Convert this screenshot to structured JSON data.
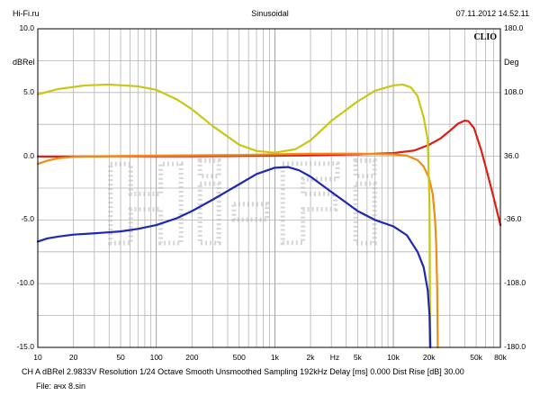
{
  "header": {
    "left": "Hi-Fi.ru",
    "center": "Sinusoidal",
    "right": "07.11.2012 14.52.11"
  },
  "badge": "CLIO",
  "watermark": "Hi-Fi",
  "footer": {
    "settings": "CH A   dBRel 2.9833V  Resolution 1/24 Octave   Smooth Unsmoothed   Sampling 192kHz   Delay [ms] 0.000     Dist Rise [dB] 30.00",
    "file": "File: ачх 8.sin"
  },
  "chart_data": {
    "type": "line",
    "x_scale": "log",
    "xlim": [
      10,
      80000
    ],
    "ylim": [
      -15,
      10
    ],
    "y2lim": [
      -180,
      180
    ],
    "ylabel": "dBRel",
    "y2label": "Deg",
    "xunit": "Hz",
    "grid": true,
    "x_ticks": [
      {
        "v": 10,
        "label": "10"
      },
      {
        "v": 20,
        "label": "20"
      },
      {
        "v": 50,
        "label": "50"
      },
      {
        "v": 100,
        "label": "100"
      },
      {
        "v": 200,
        "label": "200"
      },
      {
        "v": 500,
        "label": "500"
      },
      {
        "v": 1000,
        "label": "1k"
      },
      {
        "v": 2000,
        "label": "2k"
      },
      {
        "v": 5000,
        "label": "5k"
      },
      {
        "v": 10000,
        "label": "10k"
      },
      {
        "v": 20000,
        "label": "20k"
      },
      {
        "v": 50000,
        "label": "50k"
      },
      {
        "v": 80000,
        "label": "80k"
      }
    ],
    "x_unit_tick": {
      "v": 3200,
      "label": "Hz"
    },
    "y_ticks": [
      {
        "v": 10,
        "label": "10.0"
      },
      {
        "v": 5,
        "label": "5.0"
      },
      {
        "v": 0,
        "label": "0.0"
      },
      {
        "v": -5,
        "label": "-5.0"
      },
      {
        "v": -10,
        "label": "-10.0"
      },
      {
        "v": -15,
        "label": "-15.0"
      }
    ],
    "y2_ticks": [
      {
        "v": 180,
        "label": "180.0"
      },
      {
        "v": 108,
        "label": "108.0"
      },
      {
        "v": 36,
        "label": "36.0"
      },
      {
        "v": -36,
        "label": "-36.0"
      },
      {
        "v": -108,
        "label": "-108.0"
      },
      {
        "v": -180,
        "label": "-180.0"
      }
    ],
    "series": [
      {
        "color": "#dc1e14",
        "axis": "left",
        "points": [
          [
            10,
            -0.02
          ],
          [
            20,
            -0.02
          ],
          [
            50,
            0.0
          ],
          [
            100,
            0.0
          ],
          [
            200,
            0.0
          ],
          [
            500,
            0.02
          ],
          [
            1000,
            0.04
          ],
          [
            2000,
            0.08
          ],
          [
            5000,
            0.15
          ],
          [
            10000,
            0.25
          ],
          [
            15000,
            0.45
          ],
          [
            20000,
            0.9
          ],
          [
            25000,
            1.4
          ],
          [
            30000,
            2.0
          ],
          [
            35000,
            2.55
          ],
          [
            40000,
            2.8
          ],
          [
            43000,
            2.75
          ],
          [
            48000,
            2.2
          ],
          [
            55000,
            0.5
          ],
          [
            60000,
            -0.8
          ],
          [
            70000,
            -3.2
          ],
          [
            80000,
            -5.4
          ]
        ]
      },
      {
        "color": "#f08c14",
        "axis": "left",
        "points": [
          [
            10,
            -0.6
          ],
          [
            12,
            -0.35
          ],
          [
            15,
            -0.15
          ],
          [
            20,
            -0.05
          ],
          [
            30,
            0.0
          ],
          [
            100,
            0.05
          ],
          [
            500,
            0.1
          ],
          [
            1000,
            0.15
          ],
          [
            2000,
            0.2
          ],
          [
            5000,
            0.2
          ],
          [
            10000,
            0.15
          ],
          [
            13000,
            0.05
          ],
          [
            16000,
            -0.3
          ],
          [
            18000,
            -0.8
          ],
          [
            20000,
            -1.7
          ],
          [
            21500,
            -3.0
          ],
          [
            22500,
            -5.0
          ],
          [
            23000,
            -7.0
          ],
          [
            23400,
            -10.0
          ],
          [
            23700,
            -15.0
          ]
        ]
      },
      {
        "color": "#c8c814",
        "axis": "right",
        "points": [
          [
            10,
            106
          ],
          [
            15,
            112
          ],
          [
            25,
            116
          ],
          [
            40,
            117
          ],
          [
            70,
            115
          ],
          [
            100,
            111
          ],
          [
            150,
            100
          ],
          [
            200,
            89
          ],
          [
            300,
            70
          ],
          [
            500,
            49
          ],
          [
            700,
            42
          ],
          [
            1000,
            40
          ],
          [
            1500,
            44
          ],
          [
            2000,
            54
          ],
          [
            3000,
            76
          ],
          [
            5000,
            98
          ],
          [
            7000,
            110
          ],
          [
            10000,
            116
          ],
          [
            12000,
            117
          ],
          [
            14000,
            114
          ],
          [
            16000,
            104
          ],
          [
            18000,
            80
          ],
          [
            19500,
            55
          ],
          [
            20200,
            -20
          ],
          [
            20500,
            -180
          ]
        ]
      },
      {
        "color": "#1e28b4",
        "axis": "left",
        "points": [
          [
            10,
            -6.7
          ],
          [
            12,
            -6.45
          ],
          [
            15,
            -6.3
          ],
          [
            20,
            -6.15
          ],
          [
            30,
            -6.05
          ],
          [
            50,
            -5.9
          ],
          [
            70,
            -5.7
          ],
          [
            100,
            -5.4
          ],
          [
            150,
            -4.85
          ],
          [
            200,
            -4.3
          ],
          [
            300,
            -3.4
          ],
          [
            500,
            -2.2
          ],
          [
            700,
            -1.4
          ],
          [
            1000,
            -0.9
          ],
          [
            1300,
            -0.85
          ],
          [
            1600,
            -1.1
          ],
          [
            2000,
            -1.6
          ],
          [
            3000,
            -2.8
          ],
          [
            5000,
            -4.3
          ],
          [
            7000,
            -5.0
          ],
          [
            10000,
            -5.5
          ],
          [
            13000,
            -6.2
          ],
          [
            16000,
            -7.5
          ],
          [
            18000,
            -8.7
          ],
          [
            19500,
            -10.5
          ],
          [
            20200,
            -12.5
          ],
          [
            20500,
            -15.0
          ]
        ]
      }
    ]
  }
}
